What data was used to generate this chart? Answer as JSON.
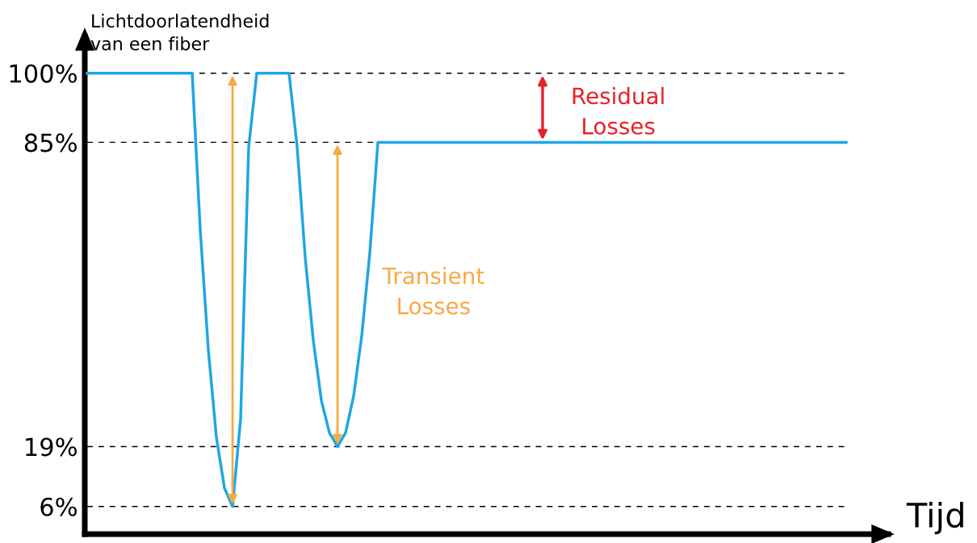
{
  "chart_data": {
    "type": "line",
    "xlabel": "Tijd",
    "ylabel": "Lichtdoorlatendheid\nvan een fiber",
    "categories": [
      null,
      null,
      null,
      null,
      null,
      null,
      null,
      null,
      null,
      null,
      null,
      null,
      null,
      null,
      null,
      null,
      null,
      null,
      null,
      null,
      null,
      null,
      null,
      null,
      null,
      null,
      null,
      null,
      null,
      null,
      null,
      null,
      null,
      null,
      null,
      null,
      null,
      null,
      null,
      null,
      null,
      null,
      null,
      null,
      null,
      null,
      null,
      null,
      null,
      null,
      null,
      null,
      null,
      null,
      null,
      null,
      null,
      null,
      null,
      null,
      null,
      null,
      null,
      null,
      null,
      null,
      null,
      null,
      null,
      null,
      null,
      null,
      null,
      null,
      null,
      null,
      null,
      null,
      null,
      null,
      null,
      null,
      null,
      null,
      null,
      null,
      null,
      null,
      null,
      null,
      null,
      null,
      null,
      null,
      null
    ],
    "series": [
      {
        "color": "#1ea7e1",
        "values": [
          100,
          100,
          100,
          100,
          100,
          100,
          100,
          100,
          100,
          100,
          100,
          100,
          100,
          100,
          66,
          40,
          21,
          10,
          6,
          25,
          84,
          100,
          100,
          100,
          100,
          100,
          84,
          60,
          42,
          29,
          22,
          19,
          22,
          30,
          43,
          61,
          85,
          85,
          85,
          85,
          85,
          85,
          85,
          85,
          85,
          85,
          85,
          85,
          85,
          85,
          85,
          85,
          85,
          85,
          85,
          85,
          85,
          85,
          85,
          85,
          85,
          85,
          85,
          85,
          85,
          85,
          85,
          85,
          85,
          85,
          85,
          85,
          85,
          85,
          85,
          85,
          85,
          85,
          85,
          85,
          85,
          85,
          85,
          85,
          85,
          85,
          85,
          85,
          85,
          85,
          85,
          85,
          85,
          85,
          85
        ]
      }
    ],
    "ylim": [
      0,
      108
    ],
    "yticks": [
      {
        "value": 6,
        "label": "6%"
      },
      {
        "value": 19,
        "label": "19%"
      },
      {
        "value": 85,
        "label": "85%"
      },
      {
        "value": 100,
        "label": "100%"
      }
    ],
    "tick_labels": "y",
    "grid": false,
    "marker": "none",
    "line_style": "solid",
    "ref_lines": [
      {
        "axis": "y",
        "value": 100,
        "color": "#000000",
        "line_style": "dashed"
      },
      {
        "axis": "y",
        "value": 85,
        "color": "#000000",
        "line_style": "dashed"
      },
      {
        "axis": "y",
        "value": 19,
        "color": "#000000",
        "line_style": "dashed"
      },
      {
        "axis": "y",
        "value": 6,
        "color": "#000000",
        "line_style": "dashed"
      }
    ],
    "annotations": [
      "Transient\nLosses",
      "Residual\nLosses"
    ]
  }
}
